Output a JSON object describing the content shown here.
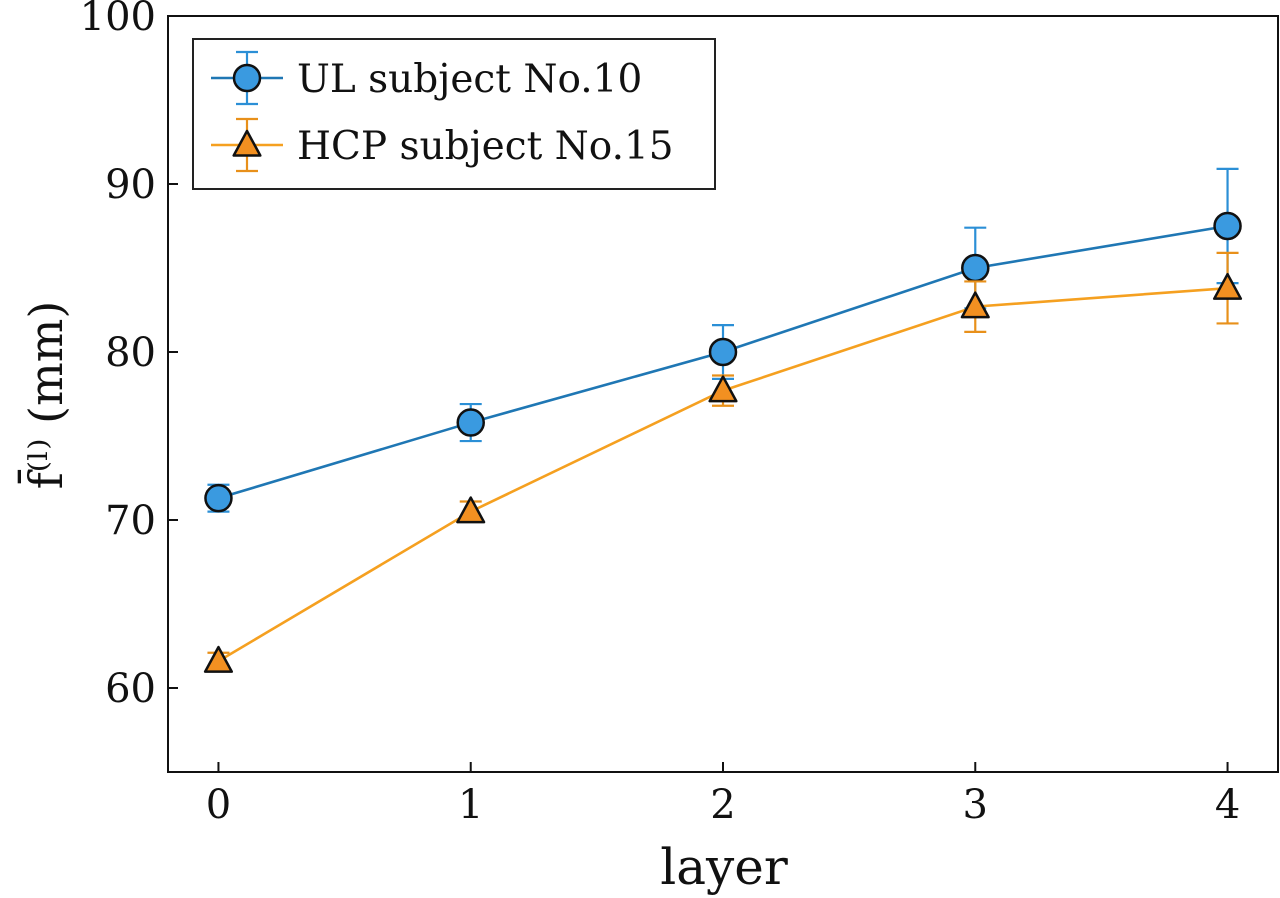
{
  "chart_data": {
    "type": "line",
    "title": "",
    "xlabel": "layer",
    "ylabel": "f̄⁽ˡ⁾ (mm)",
    "x": [
      0,
      1,
      2,
      3,
      4
    ],
    "xlim": [
      -0.2,
      4.2
    ],
    "ylim": [
      55,
      100
    ],
    "yticks": [
      60,
      70,
      80,
      90,
      100
    ],
    "xticks": [
      0,
      1,
      2,
      3,
      4
    ],
    "grid": false,
    "legend_position": "top-left",
    "series": [
      {
        "name": "UL subject No.10",
        "values": [
          71.3,
          75.8,
          80.0,
          85.0,
          87.5
        ],
        "errors": [
          0.8,
          1.1,
          1.6,
          2.4,
          3.4
        ],
        "line_color": "#1f77b4",
        "error_color": "#2b8fd6",
        "marker": "circle",
        "marker_color": "#3a9ae0"
      },
      {
        "name": "HCP subject No.15",
        "values": [
          61.6,
          70.5,
          77.7,
          82.7,
          83.8
        ],
        "errors": [
          0.5,
          0.6,
          0.9,
          1.5,
          2.1
        ],
        "line_color": "#f5a020",
        "error_color": "#e8901a",
        "marker": "triangle",
        "marker_color": "#f29021"
      }
    ]
  }
}
